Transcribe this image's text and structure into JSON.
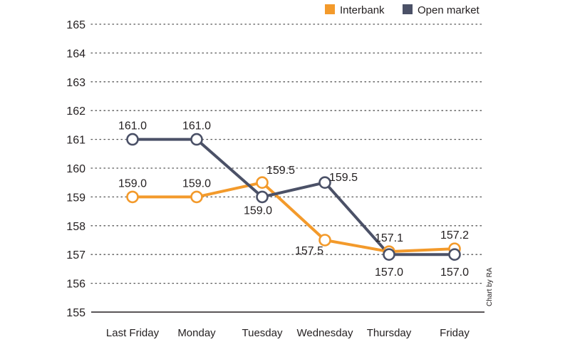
{
  "chart_data": {
    "type": "line",
    "title": "",
    "xlabel": "",
    "ylabel": "",
    "categories": [
      "Last Friday",
      "Monday",
      "Tuesday",
      "Wednesday",
      "Thursday",
      "Friday"
    ],
    "ylim": [
      155,
      165
    ],
    "yticks": [
      "155",
      "156",
      "157",
      "158",
      "159",
      "160",
      "161",
      "162",
      "163",
      "164",
      "165"
    ],
    "grid": true,
    "legend_position": "top-right",
    "series": [
      {
        "name": "Interbank",
        "color": "#f39a2b",
        "values": [
          159.0,
          159.0,
          159.5,
          157.5,
          157.1,
          157.2
        ],
        "labels": [
          "159.0",
          "159.0",
          "159.5",
          "157.5",
          "157.1",
          "157.2"
        ]
      },
      {
        "name": "Open market",
        "color": "#4b5167",
        "values": [
          161.0,
          161.0,
          159.0,
          159.5,
          157.0,
          157.0
        ],
        "labels": [
          "161.0",
          "161.0",
          "159.0",
          "159.5",
          "157.0",
          "157.0"
        ]
      }
    ],
    "credit": "Chart by RA"
  }
}
